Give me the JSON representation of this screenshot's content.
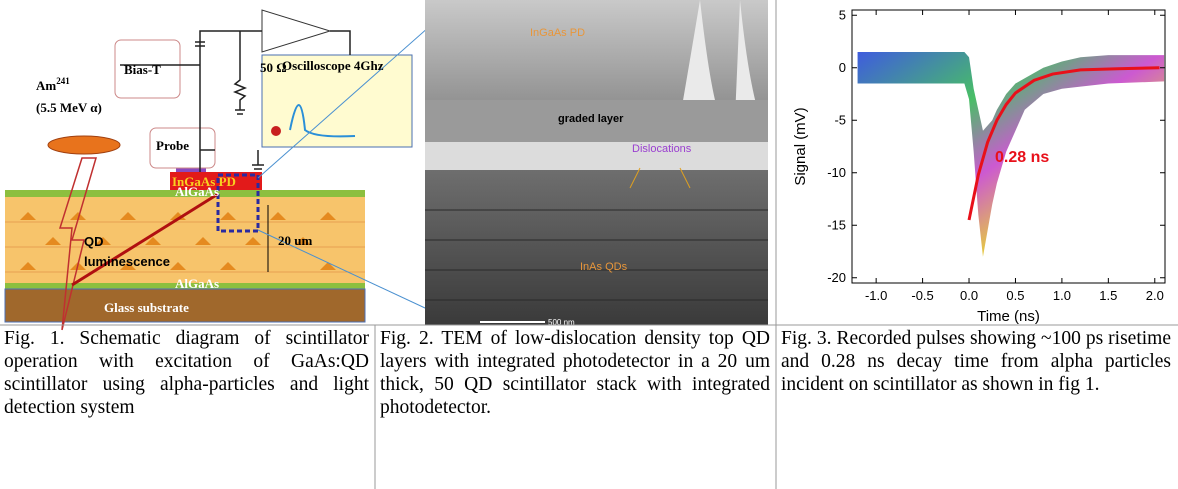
{
  "panel1": {
    "am": "Am",
    "am_mass": "241",
    "alpha": "(5.5 MeV α)",
    "bias_t": "Bias-T",
    "resistor": "50 Ω",
    "oscilloscope": "Oscilloscope 4Ghz",
    "probe": "Probe",
    "pd": "InGaAs PD",
    "algaas_top": "AlGaAs",
    "algaas_bottom": "AlGaAs",
    "thickness": "20 um",
    "qd": "QD",
    "luminescence": "luminescence",
    "substrate": "Glass substrate"
  },
  "panel2": {
    "pd": "InGaAs PD",
    "graded": "graded layer",
    "dislocations": "Dislocations",
    "qds": "InAs QDs",
    "scale": "500 nm"
  },
  "chart_data": {
    "type": "line",
    "ylabel": "Signal (mV)",
    "xlabel": "Time (ns)",
    "annotation": "0.28 ns",
    "xlim": [
      -1.26,
      2.11
    ],
    "ylim": [
      -20.5,
      5.5
    ],
    "xticks": [
      {
        "value": -1,
        "label": "-1.0"
      },
      {
        "value": -0.5,
        "label": "-0.5"
      },
      {
        "value": 0,
        "label": "0.0"
      },
      {
        "value": 0.5,
        "label": "0.5"
      },
      {
        "value": 1,
        "label": "1.0"
      },
      {
        "value": 1.5,
        "label": "1.5"
      },
      {
        "value": 2,
        "label": "2.0"
      }
    ],
    "yticks": [
      5,
      0,
      -5,
      -10,
      -15,
      -20
    ],
    "band": {
      "x": [
        -1.2,
        -0.5,
        -0.05,
        0.0,
        0.05,
        0.1,
        0.15,
        0.25,
        0.3,
        0.4,
        0.5,
        0.6,
        0.8,
        1.0,
        1.2,
        1.5,
        2.1
      ],
      "upper": [
        1.5,
        1.5,
        1.5,
        1,
        -2,
        -4,
        -6,
        -5,
        -4,
        -2.5,
        -1.5,
        -1,
        0,
        0.6,
        1,
        1.2,
        1.2
      ],
      "lower": [
        -1.5,
        -1.5,
        -1.5,
        -3,
        -8,
        -14,
        -18,
        -13,
        -11,
        -8,
        -6,
        -4,
        -2.5,
        -2,
        -1.8,
        -1.5,
        -1.3
      ]
    },
    "series": [
      {
        "color": "#e8101a",
        "x": [
          0,
          0.1,
          0.2,
          0.3,
          0.4,
          0.5,
          0.7,
          0.9,
          1.2,
          1.6,
          2.05
        ],
        "values": [
          -14.5,
          -10.2,
          -7.1,
          -5.0,
          -3.5,
          -2.4,
          -1.2,
          -0.6,
          -0.2,
          -0.1,
          0
        ]
      }
    ]
  },
  "captions": [
    "Fig. 1.  Schematic diagram of scintillator operation with excitation of GaAs:QD scintillator using alpha-particles and light detection system",
    "Fig. 2. TEM of low-dislocation density top QD layers with integrated photodetector in a 20 um thick, 50 QD scintillator stack with integrated photodetector.",
    "Fig. 3. Recorded pulses showing ~100 ps risetime and 0.28 ns decay time from alpha particles incident on scintillator as shown in fig 1."
  ]
}
